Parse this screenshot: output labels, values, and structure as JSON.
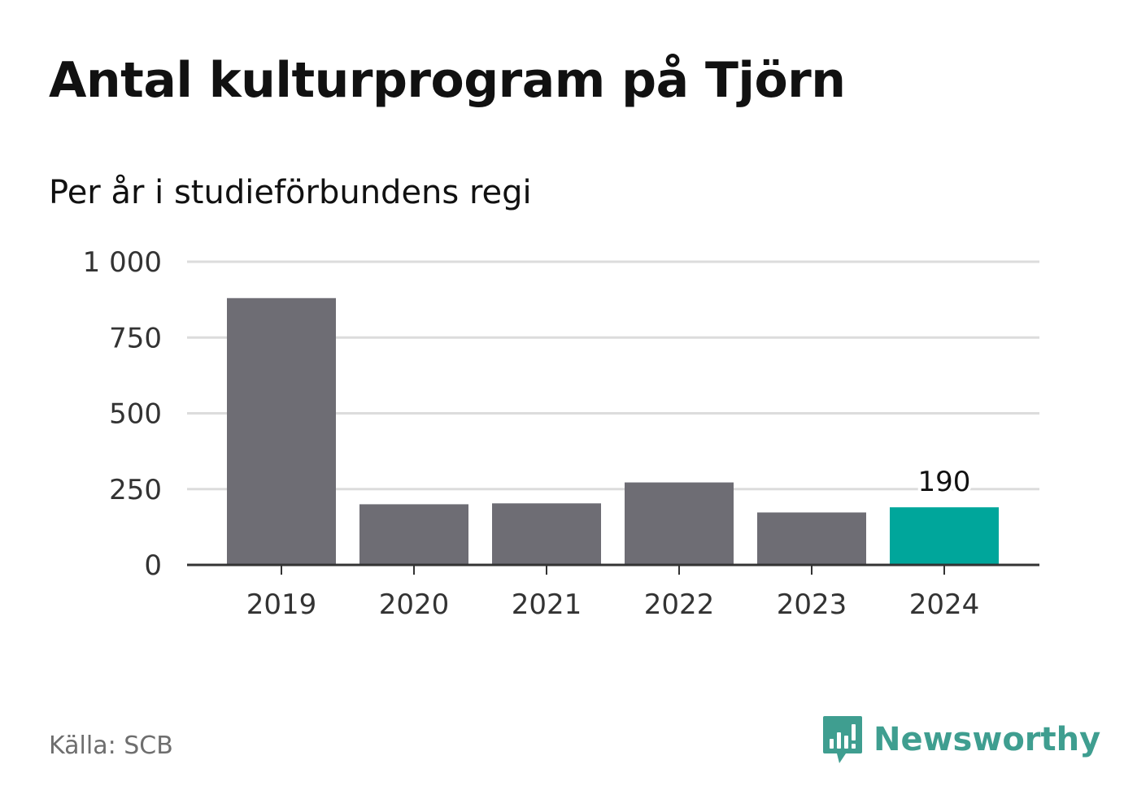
{
  "header": {
    "title": "Antal kulturprogram på Tjörn",
    "subtitle": "Per år i studieförbundens regi"
  },
  "footer": {
    "source": "Källa: SCB",
    "brand": "Newsworthy"
  },
  "colors": {
    "bar": "#6e6d74",
    "highlight": "#00a69b",
    "grid": "#dcdcdc",
    "axis": "#333333",
    "brand": "#3f9e90"
  },
  "chart_data": {
    "type": "bar",
    "categories": [
      "2019",
      "2020",
      "2021",
      "2022",
      "2023",
      "2024"
    ],
    "values": [
      880,
      200,
      203,
      272,
      173,
      190
    ],
    "highlight_index": 5,
    "data_labels": [
      {
        "index": 5,
        "text": "190"
      }
    ],
    "ylim": [
      0,
      1000
    ],
    "yticks": [
      0,
      250,
      500,
      750,
      1000
    ],
    "ytick_labels": [
      "0",
      "250",
      "500",
      "750",
      "1 000"
    ],
    "grid": true,
    "legend": false
  }
}
